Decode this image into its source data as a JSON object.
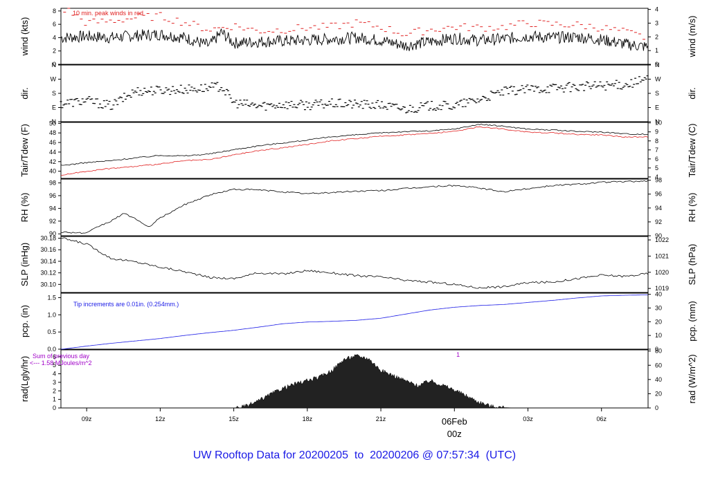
{
  "title": "UW Rooftop Data for 20200205  to  20200206 @ 07:57:34  (UTC)",
  "time_axis": {
    "tick_labels": [
      "09z",
      "12z",
      "15z",
      "18z",
      "21z",
      "06Feb",
      "03z",
      "06z"
    ],
    "tick_hours": [
      9,
      12,
      15,
      18,
      21,
      24,
      27,
      30
    ],
    "hour_range": [
      7.95,
      31.9
    ],
    "highlight_label": "06Feb",
    "highlight_sublabel": "00z",
    "highlight_color": "#e02020"
  },
  "chart_data": [
    {
      "type": "line",
      "ylabel_left": "wind (kts)",
      "ylabel_right": "wind (m/s)",
      "left_ticks": [
        "0",
        "2",
        "4",
        "6",
        "8"
      ],
      "right_ticks": [
        "0",
        "1",
        "2",
        "3",
        "4"
      ],
      "ylim_left": [
        0,
        8.4
      ],
      "annotation": "10 min. peak winds in red",
      "annotation_color": "#e02020",
      "series": [
        {
          "name": "wind",
          "color": "#000000",
          "x": [
            8,
            9,
            10,
            11,
            12,
            13,
            14,
            14.5,
            15,
            16,
            17,
            18,
            19,
            20,
            21,
            22,
            23,
            24,
            25,
            26,
            27,
            28,
            29,
            30,
            31,
            31.9
          ],
          "values": [
            4.0,
            4.2,
            4.0,
            4.3,
            4.5,
            4.0,
            2.8,
            4.8,
            3.2,
            3.4,
            3.5,
            3.6,
            3.8,
            4.0,
            3.6,
            2.8,
            3.4,
            3.9,
            3.6,
            3.8,
            4.2,
            4.0,
            4.1,
            3.7,
            3.0,
            2.6
          ]
        },
        {
          "name": "peak",
          "color": "#e02020",
          "x": [
            8.2,
            9,
            10,
            11,
            12,
            13,
            14,
            15,
            16,
            17,
            18,
            19,
            20,
            21,
            22,
            23,
            24,
            25,
            26,
            27,
            28,
            29,
            30,
            31,
            31.8
          ],
          "values": [
            8.2,
            6.2,
            6.5,
            7.0,
            7.2,
            6.3,
            5.2,
            5.8,
            5.0,
            5.2,
            5.5,
            5.6,
            6.2,
            5.6,
            4.5,
            5.2,
            5.6,
            5.5,
            5.6,
            6.2,
            6.0,
            5.9,
            5.5,
            4.8,
            4.0
          ]
        }
      ]
    },
    {
      "type": "scatter",
      "ylabel_left": "dir.",
      "ylabel_right": "dir.",
      "left_ticks": [
        "N",
        "E",
        "S",
        "W",
        "N"
      ],
      "right_ticks": [
        "N",
        "E",
        "S",
        "W",
        "N"
      ],
      "tick_degrees": [
        0,
        90,
        180,
        270,
        360
      ],
      "ylim_left": [
        0,
        360
      ],
      "series": [
        {
          "name": "direction",
          "color": "#000000",
          "x": [
            8,
            9,
            10,
            11,
            12,
            13,
            14,
            14.5,
            15,
            16,
            17,
            18,
            19,
            20,
            21,
            22,
            23,
            24,
            25,
            26,
            27,
            28,
            29,
            30,
            31,
            31.9
          ],
          "values": [
            115,
            135,
            100,
            195,
            200,
            205,
            215,
            225,
            120,
            100,
            110,
            105,
            115,
            110,
            105,
            80,
            100,
            100,
            140,
            190,
            205,
            215,
            220,
            230,
            235,
            270
          ]
        }
      ]
    },
    {
      "type": "line",
      "ylabel_left": "Tair/Tdew (F)",
      "ylabel_right": "Tair/Tdew (C)",
      "left_ticks": [
        "40",
        "42",
        "44",
        "46",
        "48",
        "50"
      ],
      "right_ticks": [
        "4",
        "5",
        "6",
        "7",
        "8",
        "9",
        "10"
      ],
      "ylim_left": [
        38.5,
        50.2
      ],
      "series": [
        {
          "name": "Tair",
          "color": "#000000",
          "x": [
            8,
            9,
            10,
            11,
            12,
            13,
            14,
            15,
            16,
            17,
            18,
            19,
            20,
            21,
            22,
            23,
            24,
            25,
            26,
            27,
            28,
            29,
            30,
            31,
            31.9
          ],
          "values": [
            41.2,
            41.8,
            42.2,
            42.8,
            43.3,
            43.2,
            43.6,
            44.5,
            45.3,
            45.9,
            46.5,
            47.2,
            47.6,
            48.0,
            48.3,
            48.4,
            48.8,
            49.8,
            49.4,
            48.8,
            48.6,
            48.3,
            48.2,
            47.8,
            47.7
          ]
        },
        {
          "name": "Tdew",
          "color": "#e02020",
          "x": [
            8,
            9,
            10,
            11,
            12,
            13,
            14,
            15,
            16,
            17,
            18,
            19,
            20,
            21,
            22,
            23,
            24,
            25,
            26,
            27,
            28,
            29,
            30,
            31,
            31.9
          ],
          "values": [
            39.2,
            40.0,
            40.6,
            41.0,
            41.5,
            42.2,
            42.4,
            43.4,
            44.3,
            44.9,
            45.6,
            46.4,
            46.8,
            47.3,
            47.6,
            47.9,
            48.3,
            49.3,
            48.8,
            48.2,
            48.0,
            47.7,
            47.6,
            47.1,
            47.2
          ]
        }
      ]
    },
    {
      "type": "line",
      "ylabel_left": "RH (%)",
      "ylabel_right": "RH (%)",
      "left_ticks": [
        "90",
        "92",
        "94",
        "96",
        "98"
      ],
      "right_ticks": [
        "90",
        "92",
        "94",
        "96",
        "98"
      ],
      "ylim_left": [
        89.7,
        98.6
      ],
      "series": [
        {
          "name": "RH",
          "color": "#000000",
          "x": [
            8,
            9,
            9.5,
            10,
            10.5,
            11,
            11.5,
            12,
            13,
            14,
            15,
            16,
            17,
            18,
            19,
            20,
            21,
            22,
            23,
            24,
            25,
            26,
            27,
            28,
            29,
            30,
            31,
            31.9
          ],
          "values": [
            90.3,
            90.1,
            91.2,
            92.0,
            93.2,
            92.4,
            91.0,
            92.5,
            94.6,
            96.1,
            97.0,
            96.9,
            96.6,
            96.3,
            96.5,
            96.7,
            96.8,
            97.1,
            97.4,
            97.6,
            97.2,
            96.6,
            97.1,
            97.6,
            97.8,
            98.1,
            98.2,
            98.3
          ]
        }
      ]
    },
    {
      "type": "line",
      "ylabel_left": "SLP (inHg)",
      "ylabel_right": "SLP (hPa)",
      "left_ticks": [
        "30.10",
        "30.12",
        "30.14",
        "30.16",
        "30.18"
      ],
      "right_ticks": [
        "1019",
        "1020",
        "1021",
        "1022"
      ],
      "ylim_left": [
        30.086,
        30.183
      ],
      "series": [
        {
          "name": "SLP",
          "color": "#000000",
          "x": [
            8,
            9,
            10,
            11,
            12,
            13,
            14,
            15,
            16,
            17,
            18,
            19,
            20,
            21,
            22,
            23,
            24,
            25,
            26,
            27,
            28,
            29,
            30,
            31,
            31.9
          ],
          "values": [
            30.18,
            30.17,
            30.145,
            30.139,
            30.13,
            30.122,
            30.112,
            30.11,
            30.12,
            30.118,
            30.124,
            30.12,
            30.115,
            30.113,
            30.107,
            30.104,
            30.1,
            30.094,
            30.096,
            30.103,
            30.104,
            30.11,
            30.116,
            30.114,
            30.119
          ]
        }
      ]
    },
    {
      "type": "line",
      "ylabel_left": "pcp. (in)",
      "ylabel_right": "pcp. (mm)",
      "left_ticks": [
        "0.0",
        "0.5",
        "1.0",
        "1.5"
      ],
      "right_ticks": [
        "0",
        "10",
        "20",
        "30",
        "40"
      ],
      "ylim_left": [
        0,
        1.63
      ],
      "annotation": "Tip increments are 0.01in. (0.254mm.)",
      "annotation_color": "#1a1ae6",
      "series": [
        {
          "name": "precipitation",
          "color": "#1a1ae6",
          "x": [
            8,
            9,
            10,
            11,
            12,
            13,
            14,
            15,
            16,
            17,
            18,
            19,
            20,
            21,
            22,
            23,
            24,
            25,
            26,
            27,
            28,
            29,
            30,
            31,
            31.9
          ],
          "values": [
            0.0,
            0.09,
            0.17,
            0.24,
            0.31,
            0.4,
            0.48,
            0.55,
            0.64,
            0.74,
            0.79,
            0.81,
            0.84,
            0.9,
            1.02,
            1.14,
            1.22,
            1.27,
            1.3,
            1.36,
            1.42,
            1.49,
            1.55,
            1.57,
            1.58
          ]
        }
      ]
    },
    {
      "type": "area",
      "ylabel_left": "rad(Lgly/hr)",
      "ylabel_right": "rad (W/m^2)",
      "left_ticks": [
        "0",
        "1",
        "2",
        "3",
        "4",
        "5",
        "6"
      ],
      "right_ticks": [
        "0",
        "20",
        "40",
        "60",
        "80"
      ],
      "ylim_left": [
        0,
        6.8
      ],
      "annotation_lines": [
        "Sum of previous day",
        "<--- 1.58 MJoules/m^2"
      ],
      "annotation_color": "#a000c8",
      "marker_label": "1",
      "marker_hour": 24.15,
      "series": [
        {
          "name": "radiation",
          "color": "#000000",
          "x": [
            15,
            15.5,
            16,
            16.5,
            17,
            17.5,
            18,
            18.5,
            19,
            19.5,
            20,
            20.5,
            21,
            21.5,
            22,
            22.5,
            23,
            23.5,
            24,
            24.5,
            25,
            25.5,
            26,
            26.5
          ],
          "values": [
            0,
            0.2,
            0.8,
            1.6,
            2.3,
            2.8,
            3.2,
            3.6,
            4.4,
            5.7,
            6.1,
            5.8,
            4.4,
            3.8,
            3.2,
            2.6,
            3.2,
            2.7,
            2.1,
            1.4,
            0.7,
            0.2,
            0.05,
            0
          ]
        }
      ]
    }
  ]
}
